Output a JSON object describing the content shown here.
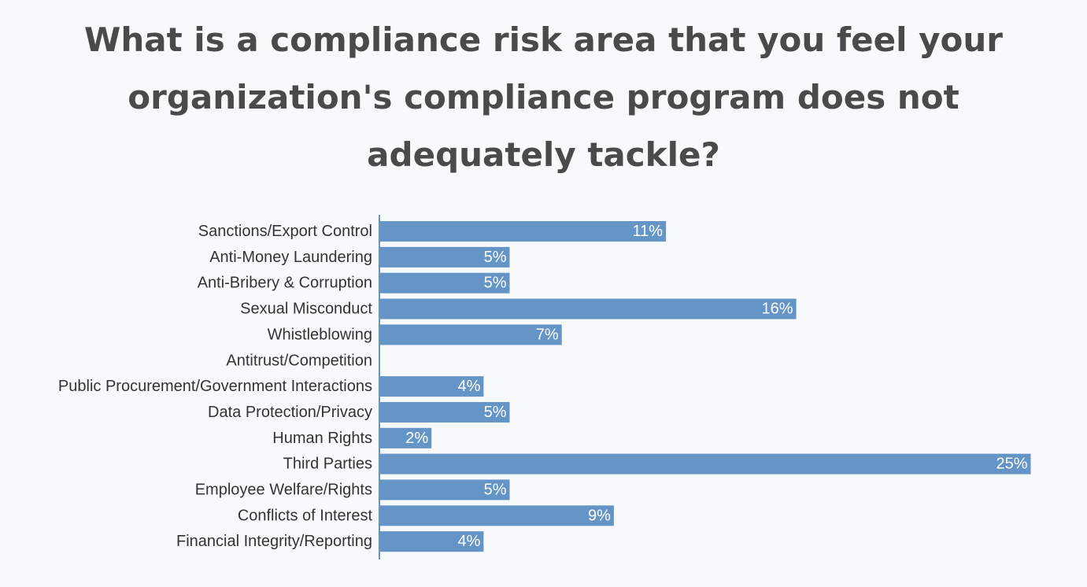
{
  "chart_data": {
    "type": "bar",
    "orientation": "horizontal",
    "title": "What is a compliance risk area that you feel your organization's compliance program does not adequately tackle?",
    "categories": [
      "Sanctions/Export Control",
      "Anti-Money Laundering",
      "Anti-Bribery & Corruption",
      "Sexual Misconduct",
      "Whistleblowing",
      "Antitrust/Competition",
      "Public Procurement/Government Interactions",
      "Data Protection/Privacy",
      "Human Rights",
      "Third Parties",
      "Employee Welfare/Rights",
      "Conflicts of Interest",
      "Financial Integrity/Reporting"
    ],
    "values": [
      11,
      5,
      5,
      16,
      7,
      0,
      4,
      5,
      2,
      25,
      5,
      9,
      4
    ],
    "value_labels": [
      "11%",
      "5%",
      "5%",
      "16%",
      "7%",
      "",
      "4%",
      "5%",
      "2%",
      "25%",
      "5%",
      "9%",
      "4%"
    ],
    "unit": "%",
    "grid": false,
    "legend": "none",
    "colors": {
      "bar": "#6495c6",
      "title": "#4a4a4a",
      "axis": "#6495c6",
      "label": "#333333",
      "value_label": "#ffffff",
      "background": "#f8f9fb"
    }
  }
}
